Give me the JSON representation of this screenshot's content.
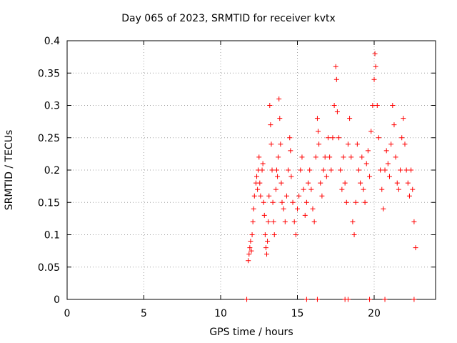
{
  "chart_data": {
    "type": "scatter",
    "title": "Day 065 of 2023, SRMTID for receiver kvtx",
    "xlabel": "GPS time / hours",
    "ylabel": "SRMTID / TECUs",
    "xlim": [
      0,
      24
    ],
    "ylim": [
      0,
      0.4
    ],
    "xticks": [
      "0",
      "5",
      "10",
      "15",
      "20"
    ],
    "yticks": [
      "0",
      "0.05",
      "0.1",
      "0.15",
      "0.2",
      "0.25",
      "0.3",
      "0.35",
      "0.4"
    ],
    "grid": true,
    "marker": "+",
    "color": "#ff0000",
    "series": [
      {
        "values": [
          {
            "x": 11.8,
            "y": 0.06
          },
          {
            "x": 11.85,
            "y": 0.07
          },
          {
            "x": 11.9,
            "y": 0.08
          },
          {
            "x": 11.95,
            "y": 0.09
          },
          {
            "x": 12.0,
            "y": 0.075
          },
          {
            "x": 12.05,
            "y": 0.1
          },
          {
            "x": 12.1,
            "y": 0.12
          },
          {
            "x": 12.15,
            "y": 0.14
          },
          {
            "x": 12.2,
            "y": 0.16
          },
          {
            "x": 12.3,
            "y": 0.18
          },
          {
            "x": 12.35,
            "y": 0.19
          },
          {
            "x": 12.4,
            "y": 0.17
          },
          {
            "x": 12.45,
            "y": 0.2
          },
          {
            "x": 12.5,
            "y": 0.22
          },
          {
            "x": 12.55,
            "y": 0.18
          },
          {
            "x": 12.6,
            "y": 0.16
          },
          {
            "x": 12.7,
            "y": 0.2
          },
          {
            "x": 12.75,
            "y": 0.21
          },
          {
            "x": 12.8,
            "y": 0.15
          },
          {
            "x": 12.85,
            "y": 0.13
          },
          {
            "x": 12.9,
            "y": 0.1
          },
          {
            "x": 12.95,
            "y": 0.08
          },
          {
            "x": 13.0,
            "y": 0.07
          },
          {
            "x": 13.05,
            "y": 0.09
          },
          {
            "x": 13.1,
            "y": 0.12
          },
          {
            "x": 13.15,
            "y": 0.16
          },
          {
            "x": 13.2,
            "y": 0.3
          },
          {
            "x": 13.25,
            "y": 0.27
          },
          {
            "x": 13.3,
            "y": 0.24
          },
          {
            "x": 13.35,
            "y": 0.2
          },
          {
            "x": 13.4,
            "y": 0.15
          },
          {
            "x": 13.45,
            "y": 0.12
          },
          {
            "x": 13.5,
            "y": 0.1
          },
          {
            "x": 13.6,
            "y": 0.17
          },
          {
            "x": 13.65,
            "y": 0.2
          },
          {
            "x": 13.7,
            "y": 0.19
          },
          {
            "x": 13.75,
            "y": 0.22
          },
          {
            "x": 13.8,
            "y": 0.31
          },
          {
            "x": 13.85,
            "y": 0.28
          },
          {
            "x": 13.9,
            "y": 0.24
          },
          {
            "x": 13.95,
            "y": 0.18
          },
          {
            "x": 14.0,
            "y": 0.15
          },
          {
            "x": 14.1,
            "y": 0.14
          },
          {
            "x": 14.2,
            "y": 0.12
          },
          {
            "x": 14.3,
            "y": 0.16
          },
          {
            "x": 14.4,
            "y": 0.2
          },
          {
            "x": 14.5,
            "y": 0.25
          },
          {
            "x": 14.55,
            "y": 0.23
          },
          {
            "x": 14.6,
            "y": 0.19
          },
          {
            "x": 14.7,
            "y": 0.15
          },
          {
            "x": 14.8,
            "y": 0.12
          },
          {
            "x": 14.9,
            "y": 0.1
          },
          {
            "x": 15.0,
            "y": 0.14
          },
          {
            "x": 15.1,
            "y": 0.16
          },
          {
            "x": 15.2,
            "y": 0.2
          },
          {
            "x": 15.3,
            "y": 0.22
          },
          {
            "x": 15.4,
            "y": 0.17
          },
          {
            "x": 15.5,
            "y": 0.13
          },
          {
            "x": 15.6,
            "y": 0.15
          },
          {
            "x": 15.7,
            "y": 0.18
          },
          {
            "x": 15.8,
            "y": 0.2
          },
          {
            "x": 15.9,
            "y": 0.17
          },
          {
            "x": 16.0,
            "y": 0.14
          },
          {
            "x": 16.1,
            "y": 0.12
          },
          {
            "x": 16.2,
            "y": 0.22
          },
          {
            "x": 16.3,
            "y": 0.28
          },
          {
            "x": 16.35,
            "y": 0.26
          },
          {
            "x": 16.4,
            "y": 0.24
          },
          {
            "x": 16.5,
            "y": 0.18
          },
          {
            "x": 16.6,
            "y": 0.16
          },
          {
            "x": 16.7,
            "y": 0.2
          },
          {
            "x": 16.8,
            "y": 0.22
          },
          {
            "x": 16.9,
            "y": 0.19
          },
          {
            "x": 17.0,
            "y": 0.25
          },
          {
            "x": 17.1,
            "y": 0.22
          },
          {
            "x": 17.2,
            "y": 0.2
          },
          {
            "x": 17.3,
            "y": 0.25
          },
          {
            "x": 17.4,
            "y": 0.3
          },
          {
            "x": 17.5,
            "y": 0.36
          },
          {
            "x": 17.55,
            "y": 0.34
          },
          {
            "x": 17.6,
            "y": 0.29
          },
          {
            "x": 17.7,
            "y": 0.25
          },
          {
            "x": 17.8,
            "y": 0.2
          },
          {
            "x": 17.9,
            "y": 0.17
          },
          {
            "x": 18.0,
            "y": 0.22
          },
          {
            "x": 18.1,
            "y": 0.18
          },
          {
            "x": 18.2,
            "y": 0.15
          },
          {
            "x": 18.3,
            "y": 0.24
          },
          {
            "x": 18.4,
            "y": 0.28
          },
          {
            "x": 18.5,
            "y": 0.22
          },
          {
            "x": 18.6,
            "y": 0.12
          },
          {
            "x": 18.7,
            "y": 0.1
          },
          {
            "x": 18.8,
            "y": 0.15
          },
          {
            "x": 18.9,
            "y": 0.24
          },
          {
            "x": 19.0,
            "y": 0.2
          },
          {
            "x": 19.1,
            "y": 0.18
          },
          {
            "x": 19.2,
            "y": 0.22
          },
          {
            "x": 19.3,
            "y": 0.17
          },
          {
            "x": 19.4,
            "y": 0.15
          },
          {
            "x": 19.5,
            "y": 0.21
          },
          {
            "x": 19.6,
            "y": 0.23
          },
          {
            "x": 19.7,
            "y": 0.19
          },
          {
            "x": 19.8,
            "y": 0.26
          },
          {
            "x": 19.9,
            "y": 0.3
          },
          {
            "x": 20.0,
            "y": 0.34
          },
          {
            "x": 20.05,
            "y": 0.38
          },
          {
            "x": 20.1,
            "y": 0.36
          },
          {
            "x": 20.2,
            "y": 0.3
          },
          {
            "x": 20.3,
            "y": 0.25
          },
          {
            "x": 20.4,
            "y": 0.2
          },
          {
            "x": 20.5,
            "y": 0.17
          },
          {
            "x": 20.6,
            "y": 0.14
          },
          {
            "x": 20.7,
            "y": 0.2
          },
          {
            "x": 20.8,
            "y": 0.23
          },
          {
            "x": 20.9,
            "y": 0.21
          },
          {
            "x": 21.0,
            "y": 0.19
          },
          {
            "x": 21.1,
            "y": 0.24
          },
          {
            "x": 21.2,
            "y": 0.3
          },
          {
            "x": 21.3,
            "y": 0.27
          },
          {
            "x": 21.4,
            "y": 0.22
          },
          {
            "x": 21.5,
            "y": 0.18
          },
          {
            "x": 21.6,
            "y": 0.17
          },
          {
            "x": 21.7,
            "y": 0.2
          },
          {
            "x": 21.8,
            "y": 0.25
          },
          {
            "x": 21.9,
            "y": 0.28
          },
          {
            "x": 22.0,
            "y": 0.24
          },
          {
            "x": 22.1,
            "y": 0.2
          },
          {
            "x": 22.2,
            "y": 0.18
          },
          {
            "x": 22.3,
            "y": 0.16
          },
          {
            "x": 22.4,
            "y": 0.2
          },
          {
            "x": 22.5,
            "y": 0.17
          },
          {
            "x": 22.6,
            "y": 0.12
          },
          {
            "x": 22.7,
            "y": 0.08
          },
          {
            "x": 11.7,
            "y": 0.0
          },
          {
            "x": 15.6,
            "y": 0.0
          },
          {
            "x": 16.3,
            "y": 0.0
          },
          {
            "x": 18.1,
            "y": 0.0
          },
          {
            "x": 18.3,
            "y": 0.0
          },
          {
            "x": 19.7,
            "y": 0.0
          },
          {
            "x": 20.7,
            "y": 0.0
          },
          {
            "x": 22.6,
            "y": 0.0
          }
        ]
      }
    ]
  }
}
